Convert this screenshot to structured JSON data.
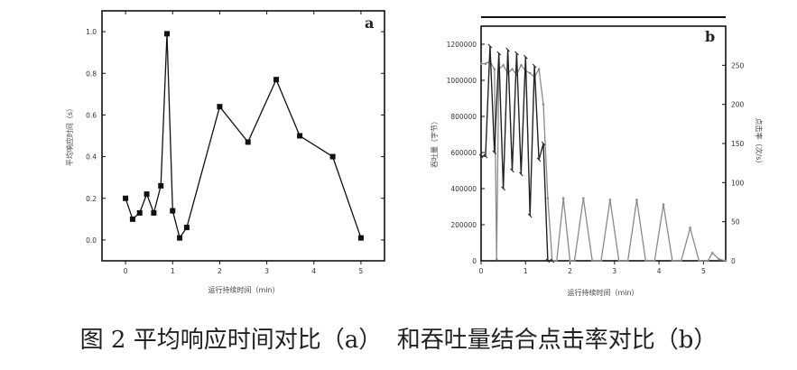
{
  "caption": "图 2 平均响应时间对比（a）  和吞吐量结合点击率对比（b）",
  "chart_data": [
    {
      "type": "line",
      "panel": "a",
      "xlabel": "运行持续时间（min）",
      "ylabel": "平均响应时间（s）",
      "xlim": [
        -0.5,
        5.5
      ],
      "ylim": [
        -0.1,
        1.1
      ],
      "xticks": [
        0,
        1,
        2,
        3,
        4,
        5
      ],
      "yticks": [
        0.0,
        0.2,
        0.4,
        0.6,
        0.8,
        1.0
      ],
      "ytick_labels": [
        "0.0",
        "0.2",
        "0.4",
        "0.6",
        "0.8",
        "1.0"
      ],
      "series": [
        {
          "x": [
            0.0,
            0.15,
            0.3,
            0.45,
            0.6,
            0.75,
            0.88,
            1.0,
            1.15,
            1.3,
            2.0,
            2.6,
            3.2,
            3.7,
            4.4,
            5.0
          ],
          "y": [
            0.2,
            0.1,
            0.13,
            0.22,
            0.13,
            0.26,
            0.99,
            0.14,
            0.01,
            0.06,
            0.64,
            0.47,
            0.77,
            0.5,
            0.4,
            0.01
          ]
        }
      ]
    },
    {
      "type": "line",
      "panel": "b",
      "xlabel": "运行持续时间（min）",
      "ylabel": "吞吐量（字节）",
      "y2label": "点击率（次/s）",
      "xlim": [
        0,
        5.5
      ],
      "ylim": [
        0,
        1300000
      ],
      "y2lim": [
        0,
        300
      ],
      "xticks": [
        0,
        1,
        2,
        3,
        4,
        5
      ],
      "yticks": [
        0,
        200000,
        400000,
        600000,
        800000,
        1000000,
        1200000
      ],
      "ytick_labels": [
        "0",
        "200000",
        "400000",
        "600000",
        "800000",
        "1000000",
        "1200000"
      ],
      "y2ticks": [
        0,
        50,
        100,
        150,
        200,
        250
      ],
      "series": [
        {
          "axis": "left",
          "x": [
            0.0,
            0.1,
            0.2,
            0.3,
            0.4,
            0.5,
            0.6,
            0.7,
            0.8,
            0.9,
            1.0,
            1.1,
            1.2,
            1.3,
            1.4,
            1.5,
            1.6
          ],
          "y": [
            580000,
            580000,
            1190000,
            600000,
            1150000,
            400000,
            1170000,
            500000,
            1150000,
            480000,
            1130000,
            250000,
            1080000,
            560000,
            650000,
            0,
            0
          ]
        },
        {
          "axis": "right",
          "x": [
            0.0,
            0.1,
            0.2,
            0.3,
            0.35,
            0.4,
            0.5,
            0.6,
            0.7,
            0.8,
            0.9,
            1.0,
            1.1,
            1.2,
            1.3,
            1.4,
            1.5,
            1.6,
            1.7,
            1.85,
            2.0,
            2.1,
            2.3,
            2.5,
            2.7,
            2.9,
            3.1,
            3.3,
            3.5,
            3.7,
            3.9,
            4.1,
            4.3,
            4.5,
            4.7,
            4.9,
            5.1,
            5.2,
            5.35,
            5.5
          ],
          "y": [
            252,
            252,
            255,
            245,
            2,
            245,
            250,
            240,
            245,
            238,
            250,
            243,
            240,
            235,
            245,
            200,
            80,
            0,
            0,
            80,
            0,
            0,
            80,
            0,
            0,
            78,
            0,
            0,
            78,
            0,
            0,
            72,
            0,
            0,
            42,
            0,
            0,
            10,
            2,
            0
          ]
        }
      ]
    }
  ]
}
